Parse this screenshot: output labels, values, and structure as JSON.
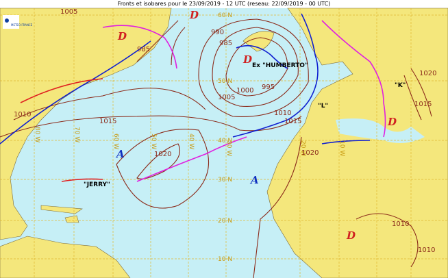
{
  "header": {
    "title": "Fronts et isobares pour le 23/09/2019 - 12 UTC (reseau: 22/09/2019 - 00 UTC)",
    "logo": "METEO FRANCE"
  },
  "lat_labels": [
    "60 N",
    "50 N",
    "40 N",
    "30 N",
    "20 N",
    "10 N"
  ],
  "lon_labels": [
    "80 W",
    "70 W",
    "60 W",
    "50 W",
    "40 W",
    "30 W",
    "20 W",
    "10 W"
  ],
  "isobar_labels": [
    1005,
    990,
    985,
    985,
    1000,
    1005,
    995,
    1010,
    1015,
    1010,
    1015,
    1020,
    1020,
    1020,
    1015,
    1010,
    1010
  ],
  "centers": [
    "D",
    "D",
    "D",
    "D",
    "D",
    "A",
    "A"
  ],
  "storms": [
    "Ex \"HUMBERTO\"",
    "\"JERRY\"",
    "\"L\"",
    "\"K\""
  ]
}
